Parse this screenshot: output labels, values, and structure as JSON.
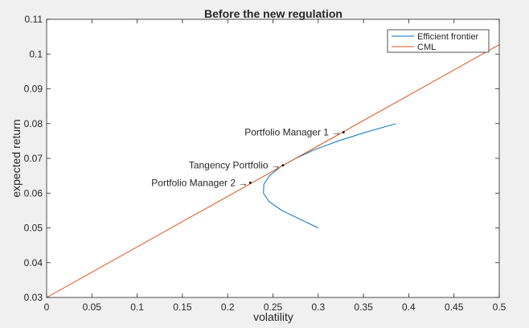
{
  "chart_data": {
    "type": "line",
    "title": "Before the new regulation",
    "xlabel": "volatility",
    "ylabel": "expected return",
    "xlim": [
      0,
      0.5
    ],
    "ylim": [
      0.03,
      0.11
    ],
    "xticks": [
      0,
      0.05,
      0.1,
      0.15,
      0.2,
      0.25,
      0.3,
      0.35,
      0.4,
      0.45,
      0.5
    ],
    "xtick_labels": [
      "0",
      "0.05",
      "0.1",
      "0.15",
      "0.2",
      "0.25",
      "0.3",
      "0.35",
      "0.4",
      "0.45",
      "0.5"
    ],
    "yticks": [
      0.03,
      0.04,
      0.05,
      0.06,
      0.07,
      0.08,
      0.09,
      0.1,
      0.11
    ],
    "ytick_labels": [
      "0.03",
      "0.04",
      "0.05",
      "0.06",
      "0.07",
      "0.08",
      "0.09",
      "0.1",
      "0.11"
    ],
    "grid": false,
    "legend_position": "top-right",
    "series": [
      {
        "name": "Efficient frontier",
        "color": "#0072bd",
        "points": [
          [
            0.3,
            0.05
          ],
          [
            0.28,
            0.0525
          ],
          [
            0.26,
            0.055
          ],
          [
            0.246,
            0.0575
          ],
          [
            0.2395,
            0.06
          ],
          [
            0.24,
            0.0625
          ],
          [
            0.246,
            0.065
          ],
          [
            0.258,
            0.0675
          ],
          [
            0.275,
            0.07
          ],
          [
            0.296,
            0.0725
          ],
          [
            0.322,
            0.075
          ],
          [
            0.352,
            0.0775
          ],
          [
            0.386,
            0.08
          ]
        ]
      },
      {
        "name": "CML",
        "color": "#d95319",
        "points": [
          [
            0,
            0.03
          ],
          [
            0.5,
            0.1027
          ]
        ]
      }
    ],
    "annotations": [
      {
        "text": "Portfolio Manager 1 →",
        "x": 0.328,
        "y": 0.0775
      },
      {
        "text": "Tangency Portfolio →",
        "x": 0.261,
        "y": 0.068
      },
      {
        "text": "Portfolio Manager 2 →",
        "x": 0.225,
        "y": 0.063
      }
    ]
  }
}
